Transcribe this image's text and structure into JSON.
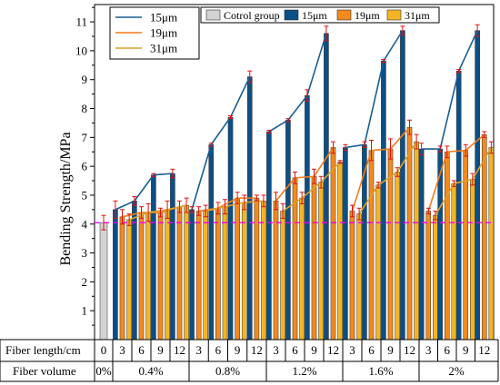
{
  "chart_data": {
    "type": "bar",
    "ylabel": "Bending Strength/MPa",
    "ylim": [
      0,
      11.6
    ],
    "yticks": [
      1,
      2,
      3,
      4,
      5,
      6,
      7,
      8,
      9,
      10,
      11
    ],
    "reference_line": {
      "value": 4.05,
      "color": "#ee00ee",
      "style": "dashed"
    },
    "control": {
      "name": "Cotrol group",
      "value": 4.05,
      "error": 0.25,
      "color": "#d3d3d3"
    },
    "groups": [
      {
        "volume": "0.4%",
        "lengths": [
          "3",
          "6",
          "9",
          "12"
        ]
      },
      {
        "volume": "0.8%",
        "lengths": [
          "3",
          "6",
          "9",
          "12"
        ]
      },
      {
        "volume": "1.2%",
        "lengths": [
          "3",
          "6",
          "9",
          "12"
        ]
      },
      {
        "volume": "1.6%",
        "lengths": [
          "3",
          "6",
          "9",
          "12"
        ]
      },
      {
        "volume": "2%",
        "lengths": [
          "3",
          "6",
          "9",
          "12"
        ]
      }
    ],
    "series": [
      {
        "name": "15μm",
        "bar_color": "#0b4f86",
        "line_color": "#1a5e93",
        "values": [
          [
            4.5,
            4.8,
            5.7,
            5.75
          ],
          [
            4.5,
            6.75,
            7.7,
            9.1
          ],
          [
            7.2,
            7.6,
            8.45,
            10.6
          ],
          [
            6.65,
            6.75,
            9.65,
            10.7
          ],
          [
            6.6,
            6.6,
            9.3,
            10.7
          ]
        ],
        "errors": [
          [
            0.3,
            0.15,
            0.05,
            0.15
          ],
          [
            0.1,
            0.05,
            0.05,
            0.2
          ],
          [
            0.05,
            0.05,
            0.2,
            0.25
          ],
          [
            0.1,
            0.1,
            0.05,
            0.15
          ],
          [
            0.2,
            0.1,
            0.05,
            0.2
          ]
        ]
      },
      {
        "name": "19μm",
        "bar_color": "#f28a1e",
        "line_color": "#f07d1a",
        "values": [
          [
            4.25,
            4.4,
            4.4,
            4.6
          ],
          [
            4.45,
            4.55,
            4.9,
            4.9
          ],
          [
            4.8,
            5.6,
            5.65,
            6.65
          ],
          [
            4.45,
            6.55,
            6.6,
            7.35
          ],
          [
            4.45,
            6.5,
            6.55,
            7.1
          ]
        ],
        "errors": [
          [
            0.25,
            0.2,
            0.15,
            0.2
          ],
          [
            0.15,
            0.2,
            0.2,
            0.1
          ],
          [
            0.3,
            0.2,
            0.25,
            0.2
          ],
          [
            0.2,
            0.35,
            0.35,
            0.25
          ],
          [
            0.1,
            0.2,
            0.2,
            0.1
          ]
        ]
      },
      {
        "name": "31μm",
        "bar_color": "#f4b525",
        "line_color": "#dca12a",
        "values": [
          [
            4.15,
            4.4,
            4.5,
            4.65
          ],
          [
            4.45,
            4.6,
            4.75,
            4.8
          ],
          [
            4.45,
            4.9,
            5.45,
            6.15
          ],
          [
            4.35,
            5.35,
            5.8,
            6.85
          ],
          [
            4.3,
            5.4,
            5.55,
            6.65
          ]
        ],
        "errors": [
          [
            0.2,
            0.3,
            0.3,
            0.25
          ],
          [
            0.2,
            0.25,
            0.25,
            0.2
          ],
          [
            0.25,
            0.2,
            0.2,
            0.05
          ],
          [
            0.2,
            0.1,
            0.15,
            0.25
          ],
          [
            0.15,
            0.1,
            0.2,
            0.2
          ]
        ]
      }
    ],
    "legend_lines": {
      "entries": [
        "15μm",
        "19μm",
        "31μm"
      ]
    },
    "legend_bars": {
      "entries": [
        "Cotrol group",
        "15μm",
        "19μm",
        "31μm"
      ]
    },
    "error_color": "#e01010"
  },
  "table": {
    "row1_label": "Fiber length/cm",
    "row2_label": "Fiber volume",
    "control_length": "0",
    "control_volume": "0%"
  }
}
